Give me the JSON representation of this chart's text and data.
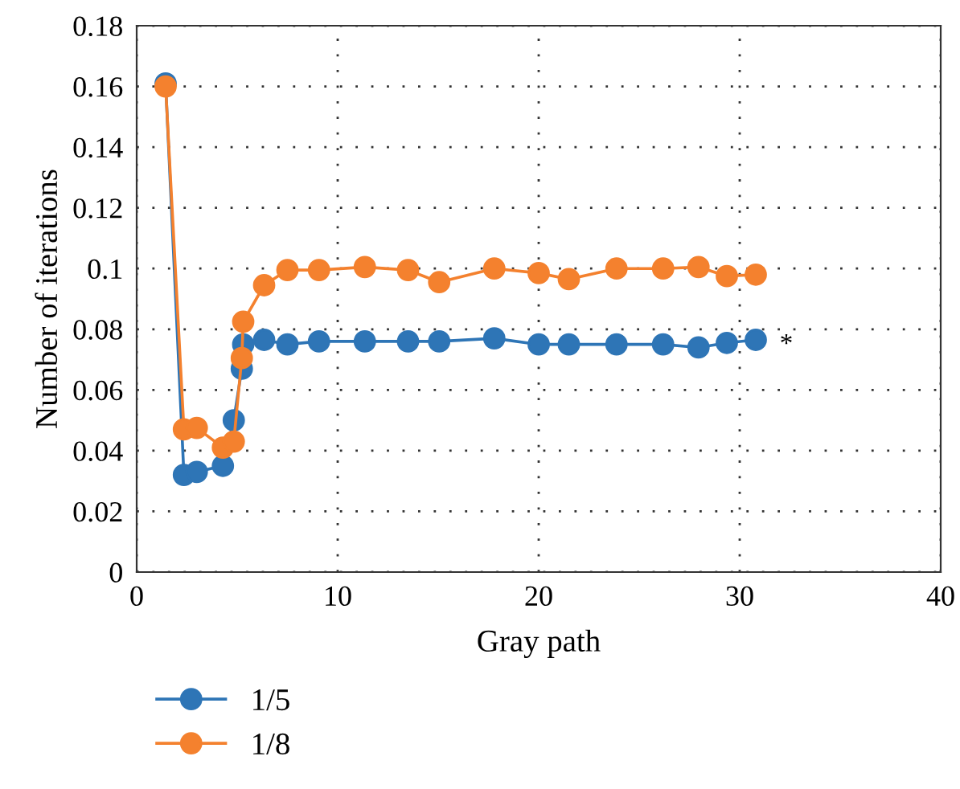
{
  "chart_data": {
    "type": "line",
    "xlabel": "Gray path",
    "ylabel": "Number of iterations",
    "xlim": [
      0,
      40
    ],
    "xticks": [
      0,
      10,
      20,
      30,
      40
    ],
    "ylim": [
      0,
      0.18
    ],
    "yticks": [
      0,
      0.02,
      0.04,
      0.06,
      0.08,
      0.1,
      0.12,
      0.14,
      0.16,
      0.18
    ],
    "grid": true,
    "legend": "bottom left",
    "marker": "circle",
    "line_style": "solid",
    "annotations": [
      "*"
    ],
    "series": [
      {
        "name": "1/5",
        "color": "#2e75b6",
        "x": [
          1.44,
          2.35,
          2.99,
          4.29,
          4.83,
          5.23,
          5.3,
          6.34,
          7.5,
          9.07,
          11.35,
          13.5,
          15.05,
          17.79,
          20.0,
          21.5,
          23.87,
          26.19,
          27.95,
          29.36,
          30.8
        ],
        "values": [
          0.161,
          0.032,
          0.033,
          0.035,
          0.05,
          0.067,
          0.075,
          0.0765,
          0.075,
          0.076,
          0.076,
          0.076,
          0.076,
          0.077,
          0.075,
          0.075,
          0.075,
          0.075,
          0.074,
          0.0755,
          0.0765
        ]
      },
      {
        "name": "1/8",
        "color": "#f4812e",
        "x": [
          1.44,
          2.35,
          2.99,
          4.29,
          4.83,
          5.23,
          5.3,
          6.34,
          7.5,
          9.07,
          11.35,
          13.5,
          15.05,
          17.79,
          20.0,
          21.5,
          23.87,
          26.19,
          27.95,
          29.36,
          30.8
        ],
        "values": [
          0.16,
          0.047,
          0.0475,
          0.041,
          0.043,
          0.0705,
          0.0825,
          0.0945,
          0.0995,
          0.0995,
          0.1005,
          0.0995,
          0.0955,
          0.1,
          0.0985,
          0.0965,
          0.1,
          0.1,
          0.1005,
          0.0975,
          0.098
        ]
      }
    ]
  }
}
